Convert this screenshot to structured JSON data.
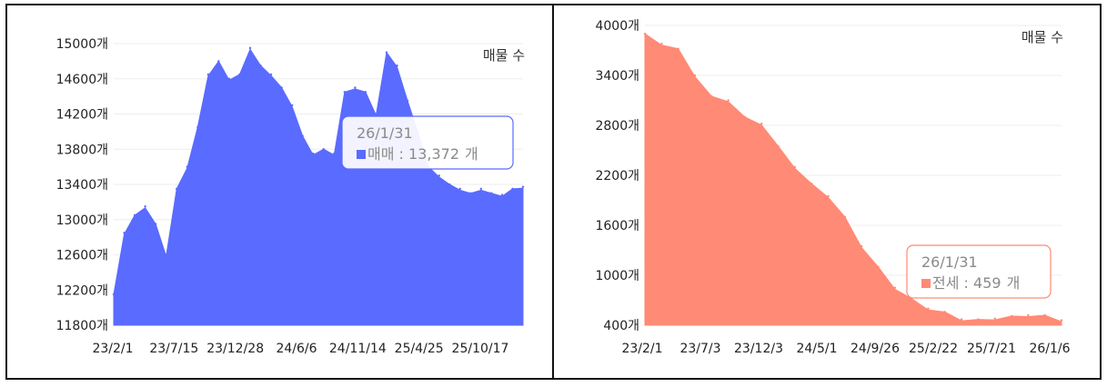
{
  "chart_data": [
    {
      "type": "area",
      "series_label": "매물 수",
      "color": "#5a6bff",
      "y_tick_labels": [
        "15000개",
        "14600개",
        "14200개",
        "13800개",
        "13400개",
        "13000개",
        "12600개",
        "12200개",
        "11800개"
      ],
      "y_ticks": [
        15000,
        14600,
        14200,
        13800,
        13400,
        13000,
        12600,
        12200,
        11800
      ],
      "ylim": [
        11800,
        15000
      ],
      "x_tick_labels": [
        "23/2/1",
        "23/7/15",
        "23/12/28",
        "24/6/6",
        "24/11/14",
        "25/4/25",
        "25/10/17"
      ],
      "x": [
        "23/2/1",
        "23/3/1",
        "23/4/1",
        "23/5/1",
        "23/6/1",
        "23/7/1",
        "23/7/15",
        "23/8/15",
        "23/9/15",
        "23/10/15",
        "23/11/15",
        "23/12/1",
        "23/12/28",
        "24/1/15",
        "24/2/15",
        "24/3/15",
        "24/4/15",
        "24/5/15",
        "24/6/6",
        "24/7/1",
        "24/8/1",
        "24/9/1",
        "24/10/1",
        "24/11/1",
        "24/11/14",
        "24/12/15",
        "25/1/15",
        "25/2/15",
        "25/3/15",
        "25/4/1",
        "25/4/25",
        "25/5/15",
        "25/6/15",
        "25/7/15",
        "25/8/15",
        "25/9/15",
        "25/10/17",
        "25/11/15",
        "25/12/15",
        "26/1/31"
      ],
      "values": [
        12150,
        12850,
        13050,
        13150,
        12950,
        12600,
        13350,
        13600,
        14050,
        14650,
        14800,
        14600,
        14650,
        14950,
        14750,
        14650,
        14500,
        14300,
        13950,
        13750,
        13800,
        13750,
        14450,
        14500,
        14450,
        14200,
        14900,
        14750,
        14350,
        14000,
        13600,
        13500,
        13400,
        13350,
        13300,
        13350,
        13300,
        13280,
        13350,
        13372
      ],
      "tooltip": {
        "date": "26/1/31",
        "series": "매매",
        "value": "13,372",
        "unit": "개",
        "separator": " : "
      }
    },
    {
      "type": "area",
      "series_label": "매물 수",
      "color": "#ff8a75",
      "y_tick_labels": [
        "4000개",
        "3400개",
        "2800개",
        "2200개",
        "1600개",
        "1000개",
        "400개"
      ],
      "y_ticks": [
        4000,
        3400,
        2800,
        2200,
        1600,
        1000,
        400
      ],
      "ylim": [
        400,
        4000
      ],
      "x_tick_labels": [
        "23/2/1",
        "23/7/3",
        "23/12/3",
        "24/5/1",
        "24/9/26",
        "25/2/22",
        "25/7/21",
        "26/1/6"
      ],
      "x": [
        "23/2/1",
        "23/4/1",
        "23/5/15",
        "23/7/3",
        "23/8/15",
        "23/10/1",
        "23/11/1",
        "23/12/3",
        "24/1/15",
        "24/3/1",
        "24/4/1",
        "24/5/1",
        "24/6/15",
        "24/8/1",
        "24/9/26",
        "24/11/1",
        "24/12/15",
        "25/2/1",
        "25/2/22",
        "25/4/1",
        "25/5/15",
        "25/7/21",
        "25/9/1",
        "25/11/1",
        "26/1/6",
        "26/1/31"
      ],
      "values": [
        3900,
        3780,
        3720,
        3400,
        3150,
        3100,
        2900,
        2820,
        2550,
        2300,
        2100,
        1950,
        1700,
        1350,
        1100,
        850,
        720,
        600,
        560,
        470,
        470,
        480,
        510,
        520,
        520,
        459
      ],
      "tooltip": {
        "date": "26/1/31",
        "series": "전세",
        "value": "459",
        "unit": "개",
        "separator": " : "
      }
    }
  ]
}
